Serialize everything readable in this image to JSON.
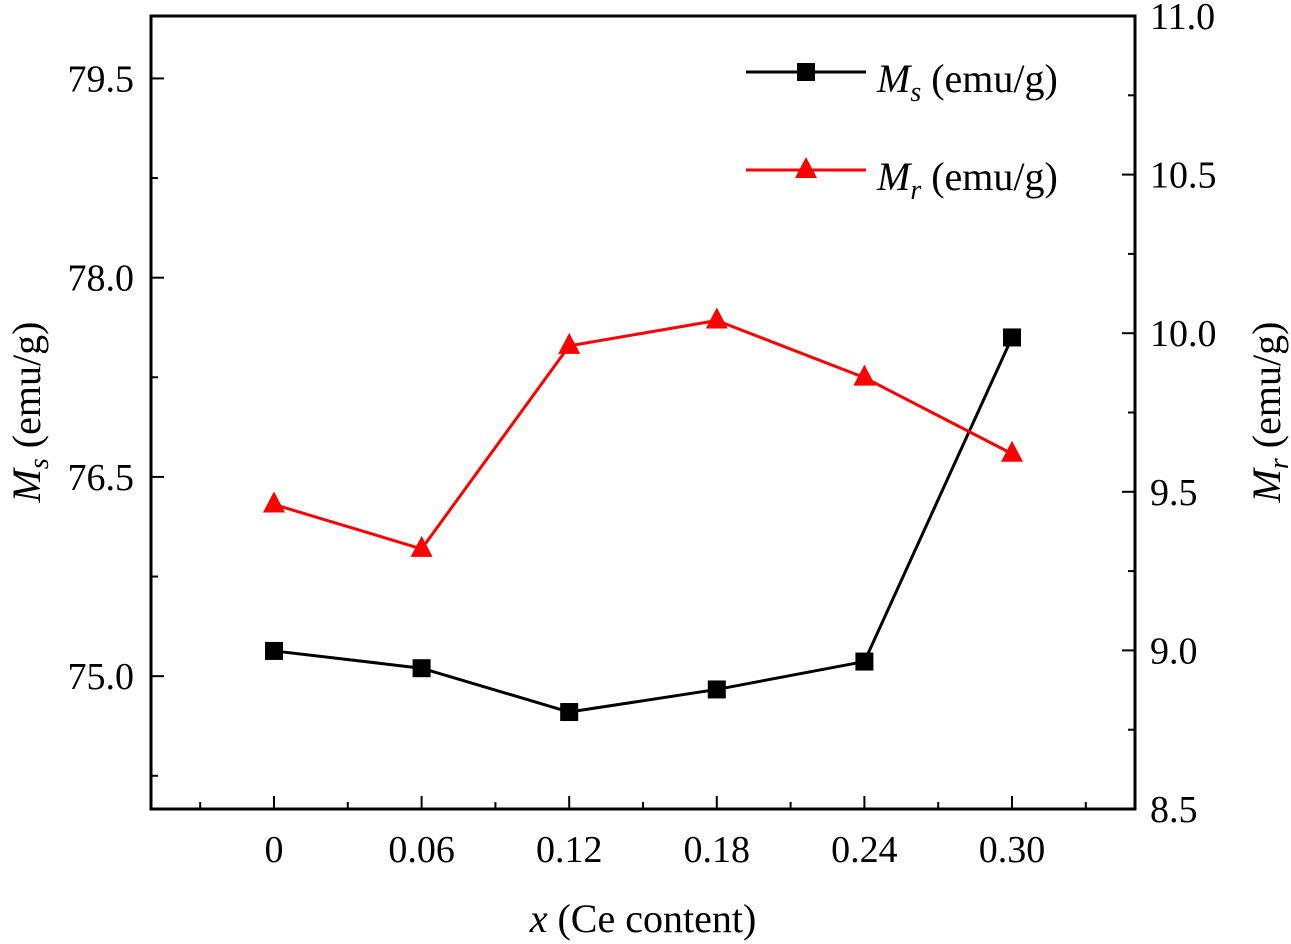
{
  "chart_data": {
    "type": "line",
    "x_title": {
      "var": "x",
      "rest": " (Ce content)"
    },
    "y_left_title": {
      "base": "M",
      "sub": "s",
      "rest": " (emu/g)"
    },
    "y_right_title": {
      "base": "M",
      "sub": "r",
      "rest": " (emu/g)"
    },
    "categories": [
      "0",
      "0.06",
      "0.12",
      "0.18",
      "0.24",
      "0.30"
    ],
    "x_values": [
      0,
      0.06,
      0.12,
      0.18,
      0.24,
      0.3
    ],
    "xlim": [
      -0.05,
      0.35
    ],
    "y_left": {
      "lim": [
        74.0,
        79.97
      ],
      "ticks": [
        "75.0",
        "76.5",
        "78.0",
        "79.5"
      ],
      "tick_values": [
        75.0,
        76.5,
        78.0,
        79.5
      ]
    },
    "y_right": {
      "lim": [
        8.5,
        11.0
      ],
      "ticks": [
        "8.5",
        "9.0",
        "9.5",
        "10.0",
        "10.5",
        "11.0"
      ],
      "tick_values": [
        8.5,
        9.0,
        9.5,
        10.0,
        10.5,
        11.0
      ]
    },
    "series": [
      {
        "name_base": "M",
        "name_sub": "s",
        "name_rest": " (emu/g)",
        "axis": "left",
        "color": "#000000",
        "marker": "square",
        "values": [
          75.19,
          75.06,
          74.73,
          74.9,
          75.11,
          77.55
        ]
      },
      {
        "name_base": "M",
        "name_sub": "r",
        "name_rest": " (emu/g)",
        "axis": "right",
        "color": "#ff0000",
        "marker": "triangle",
        "values": [
          9.46,
          9.32,
          9.96,
          10.04,
          9.86,
          9.62
        ]
      }
    ],
    "legend_position": "top-right",
    "grid": false
  }
}
